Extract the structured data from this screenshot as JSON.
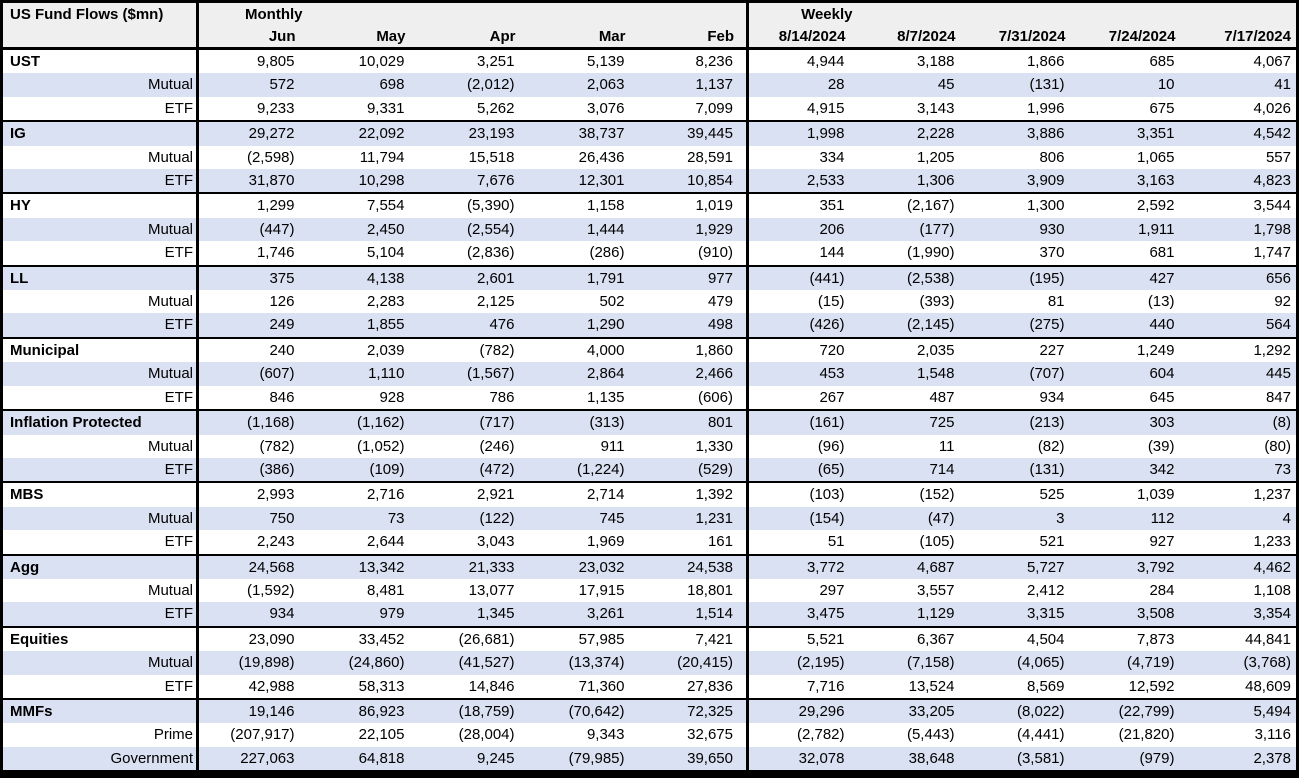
{
  "colors": {
    "band_row": "#d9e1f2",
    "header_bg": "#efefef",
    "border": "#000000",
    "text": "#000000"
  },
  "chart_data": {
    "type": "table",
    "title": "US Fund Flows ($mn)",
    "column_groups": [
      {
        "label": "Monthly",
        "columns": [
          "Jun",
          "May",
          "Apr",
          "Mar",
          "Feb"
        ]
      },
      {
        "label": "Weekly",
        "columns": [
          "8/14/2024",
          "8/7/2024",
          "7/31/2024",
          "7/24/2024",
          "7/17/2024"
        ]
      }
    ],
    "row_groups": [
      {
        "name": "UST",
        "rows": [
          {
            "label": "UST",
            "is_group": true,
            "values": [
              "9,805",
              "10,029",
              "3,251",
              "5,139",
              "8,236",
              "4,944",
              "3,188",
              "1,866",
              "685",
              "4,067"
            ]
          },
          {
            "label": "Mutual",
            "is_group": false,
            "values": [
              "572",
              "698",
              "(2,012)",
              "2,063",
              "1,137",
              "28",
              "45",
              "(131)",
              "10",
              "41"
            ]
          },
          {
            "label": "ETF",
            "is_group": false,
            "values": [
              "9,233",
              "9,331",
              "5,262",
              "3,076",
              "7,099",
              "4,915",
              "3,143",
              "1,996",
              "675",
              "4,026"
            ]
          }
        ]
      },
      {
        "name": "IG",
        "rows": [
          {
            "label": "IG",
            "is_group": true,
            "values": [
              "29,272",
              "22,092",
              "23,193",
              "38,737",
              "39,445",
              "1,998",
              "2,228",
              "3,886",
              "3,351",
              "4,542"
            ]
          },
          {
            "label": "Mutual",
            "is_group": false,
            "values": [
              "(2,598)",
              "11,794",
              "15,518",
              "26,436",
              "28,591",
              "334",
              "1,205",
              "806",
              "1,065",
              "557"
            ]
          },
          {
            "label": "ETF",
            "is_group": false,
            "values": [
              "31,870",
              "10,298",
              "7,676",
              "12,301",
              "10,854",
              "2,533",
              "1,306",
              "3,909",
              "3,163",
              "4,823"
            ]
          }
        ]
      },
      {
        "name": "HY",
        "rows": [
          {
            "label": "HY",
            "is_group": true,
            "values": [
              "1,299",
              "7,554",
              "(5,390)",
              "1,158",
              "1,019",
              "351",
              "(2,167)",
              "1,300",
              "2,592",
              "3,544"
            ]
          },
          {
            "label": "Mutual",
            "is_group": false,
            "values": [
              "(447)",
              "2,450",
              "(2,554)",
              "1,444",
              "1,929",
              "206",
              "(177)",
              "930",
              "1,911",
              "1,798"
            ]
          },
          {
            "label": "ETF",
            "is_group": false,
            "values": [
              "1,746",
              "5,104",
              "(2,836)",
              "(286)",
              "(910)",
              "144",
              "(1,990)",
              "370",
              "681",
              "1,747"
            ]
          }
        ]
      },
      {
        "name": "LL",
        "rows": [
          {
            "label": "LL",
            "is_group": true,
            "values": [
              "375",
              "4,138",
              "2,601",
              "1,791",
              "977",
              "(441)",
              "(2,538)",
              "(195)",
              "427",
              "656"
            ]
          },
          {
            "label": "Mutual",
            "is_group": false,
            "values": [
              "126",
              "2,283",
              "2,125",
              "502",
              "479",
              "(15)",
              "(393)",
              "81",
              "(13)",
              "92"
            ]
          },
          {
            "label": "ETF",
            "is_group": false,
            "values": [
              "249",
              "1,855",
              "476",
              "1,290",
              "498",
              "(426)",
              "(2,145)",
              "(275)",
              "440",
              "564"
            ]
          }
        ]
      },
      {
        "name": "Municipal",
        "rows": [
          {
            "label": "Municipal",
            "is_group": true,
            "values": [
              "240",
              "2,039",
              "(782)",
              "4,000",
              "1,860",
              "720",
              "2,035",
              "227",
              "1,249",
              "1,292"
            ]
          },
          {
            "label": "Mutual",
            "is_group": false,
            "values": [
              "(607)",
              "1,110",
              "(1,567)",
              "2,864",
              "2,466",
              "453",
              "1,548",
              "(707)",
              "604",
              "445"
            ]
          },
          {
            "label": "ETF",
            "is_group": false,
            "values": [
              "846",
              "928",
              "786",
              "1,135",
              "(606)",
              "267",
              "487",
              "934",
              "645",
              "847"
            ]
          }
        ]
      },
      {
        "name": "Inflation Protected",
        "rows": [
          {
            "label": "Inflation Protected",
            "is_group": true,
            "values": [
              "(1,168)",
              "(1,162)",
              "(717)",
              "(313)",
              "801",
              "(161)",
              "725",
              "(213)",
              "303",
              "(8)"
            ]
          },
          {
            "label": "Mutual",
            "is_group": false,
            "values": [
              "(782)",
              "(1,052)",
              "(246)",
              "911",
              "1,330",
              "(96)",
              "11",
              "(82)",
              "(39)",
              "(80)"
            ]
          },
          {
            "label": "ETF",
            "is_group": false,
            "values": [
              "(386)",
              "(109)",
              "(472)",
              "(1,224)",
              "(529)",
              "(65)",
              "714",
              "(131)",
              "342",
              "73"
            ]
          }
        ]
      },
      {
        "name": "MBS",
        "rows": [
          {
            "label": "MBS",
            "is_group": true,
            "values": [
              "2,993",
              "2,716",
              "2,921",
              "2,714",
              "1,392",
              "(103)",
              "(152)",
              "525",
              "1,039",
              "1,237"
            ]
          },
          {
            "label": "Mutual",
            "is_group": false,
            "values": [
              "750",
              "73",
              "(122)",
              "745",
              "1,231",
              "(154)",
              "(47)",
              "3",
              "112",
              "4"
            ]
          },
          {
            "label": "ETF",
            "is_group": false,
            "values": [
              "2,243",
              "2,644",
              "3,043",
              "1,969",
              "161",
              "51",
              "(105)",
              "521",
              "927",
              "1,233"
            ]
          }
        ]
      },
      {
        "name": "Agg",
        "rows": [
          {
            "label": "Agg",
            "is_group": true,
            "values": [
              "24,568",
              "13,342",
              "21,333",
              "23,032",
              "24,538",
              "3,772",
              "4,687",
              "5,727",
              "3,792",
              "4,462"
            ]
          },
          {
            "label": "Mutual",
            "is_group": false,
            "values": [
              "(1,592)",
              "8,481",
              "13,077",
              "17,915",
              "18,801",
              "297",
              "3,557",
              "2,412",
              "284",
              "1,108"
            ]
          },
          {
            "label": "ETF",
            "is_group": false,
            "values": [
              "934",
              "979",
              "1,345",
              "3,261",
              "1,514",
              "3,475",
              "1,129",
              "3,315",
              "3,508",
              "3,354"
            ]
          }
        ]
      },
      {
        "name": "Equities",
        "rows": [
          {
            "label": "Equities",
            "is_group": true,
            "values": [
              "23,090",
              "33,452",
              "(26,681)",
              "57,985",
              "7,421",
              "5,521",
              "6,367",
              "4,504",
              "7,873",
              "44,841"
            ]
          },
          {
            "label": "Mutual",
            "is_group": false,
            "values": [
              "(19,898)",
              "(24,860)",
              "(41,527)",
              "(13,374)",
              "(20,415)",
              "(2,195)",
              "(7,158)",
              "(4,065)",
              "(4,719)",
              "(3,768)"
            ]
          },
          {
            "label": "ETF",
            "is_group": false,
            "values": [
              "42,988",
              "58,313",
              "14,846",
              "71,360",
              "27,836",
              "7,716",
              "13,524",
              "8,569",
              "12,592",
              "48,609"
            ]
          }
        ]
      },
      {
        "name": "MMFs",
        "rows": [
          {
            "label": "MMFs",
            "is_group": true,
            "values": [
              "19,146",
              "86,923",
              "(18,759)",
              "(70,642)",
              "72,325",
              "29,296",
              "33,205",
              "(8,022)",
              "(22,799)",
              "5,494"
            ]
          },
          {
            "label": "Prime",
            "is_group": false,
            "values": [
              "(207,917)",
              "22,105",
              "(28,004)",
              "9,343",
              "32,675",
              "(2,782)",
              "(5,443)",
              "(4,441)",
              "(21,820)",
              "3,116"
            ]
          },
          {
            "label": "Government",
            "is_group": false,
            "values": [
              "227,063",
              "64,818",
              "9,245",
              "(79,985)",
              "39,650",
              "32,078",
              "38,648",
              "(3,581)",
              "(979)",
              "2,378"
            ]
          }
        ]
      }
    ]
  }
}
